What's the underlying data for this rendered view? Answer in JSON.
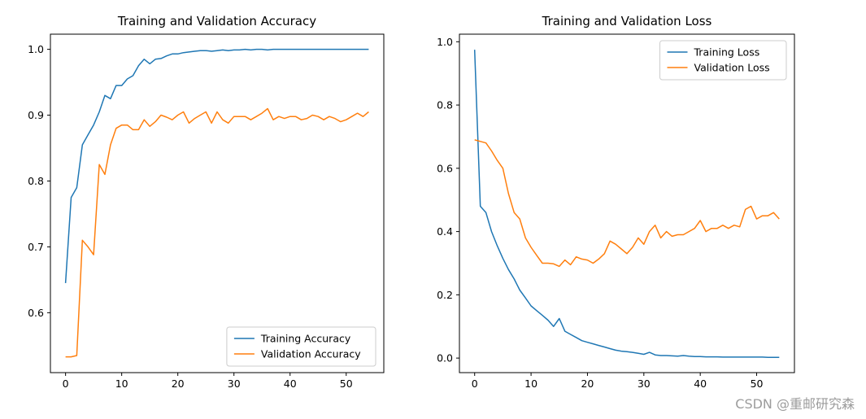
{
  "figure": {
    "background": "#ffffff"
  },
  "watermark": {
    "text": "CSDN @重邮研究森",
    "color": "#9c9c9c"
  },
  "chart_data": [
    {
      "type": "line",
      "title": "Training and Validation Accuracy",
      "xlabel": "",
      "ylabel": "",
      "grid": false,
      "legend_position": "lower-right",
      "xlim": [
        -2.7,
        56.7
      ],
      "ylim": [
        0.509,
        1.023
      ],
      "xticks": [
        "0",
        "10",
        "20",
        "30",
        "40",
        "50"
      ],
      "yticks": [
        "0.6",
        "0.7",
        "0.8",
        "0.9",
        "1.0"
      ],
      "x": [
        0,
        1,
        2,
        3,
        4,
        5,
        6,
        7,
        8,
        9,
        10,
        11,
        12,
        13,
        14,
        15,
        16,
        17,
        18,
        19,
        20,
        21,
        22,
        23,
        24,
        25,
        26,
        27,
        28,
        29,
        30,
        31,
        32,
        33,
        34,
        35,
        36,
        37,
        38,
        39,
        40,
        41,
        42,
        43,
        44,
        45,
        46,
        47,
        48,
        49,
        50,
        51,
        52,
        53,
        54
      ],
      "series": [
        {
          "name": "Training Accuracy",
          "color": "#1f77b4",
          "values": [
            0.645,
            0.775,
            0.79,
            0.855,
            0.87,
            0.885,
            0.905,
            0.93,
            0.925,
            0.945,
            0.945,
            0.955,
            0.96,
            0.975,
            0.985,
            0.978,
            0.985,
            0.986,
            0.99,
            0.993,
            0.993,
            0.995,
            0.996,
            0.997,
            0.998,
            0.998,
            0.997,
            0.998,
            0.999,
            0.998,
            0.999,
            0.999,
            1.0,
            0.999,
            1.0,
            1.0,
            0.999,
            1.0,
            1.0,
            1.0,
            1.0,
            1.0,
            1.0,
            1.0,
            1.0,
            1.0,
            1.0,
            1.0,
            1.0,
            1.0,
            1.0,
            1.0,
            1.0,
            1.0,
            1.0
          ]
        },
        {
          "name": "Validation Accuracy",
          "color": "#ff7f0e",
          "values": [
            0.533,
            0.533,
            0.535,
            0.71,
            0.7,
            0.688,
            0.825,
            0.81,
            0.855,
            0.88,
            0.885,
            0.885,
            0.878,
            0.878,
            0.893,
            0.883,
            0.89,
            0.9,
            0.897,
            0.893,
            0.9,
            0.905,
            0.888,
            0.895,
            0.9,
            0.905,
            0.888,
            0.905,
            0.893,
            0.888,
            0.898,
            0.898,
            0.898,
            0.893,
            0.898,
            0.903,
            0.91,
            0.893,
            0.898,
            0.895,
            0.898,
            0.898,
            0.893,
            0.895,
            0.9,
            0.898,
            0.893,
            0.898,
            0.895,
            0.89,
            0.893,
            0.898,
            0.903,
            0.898,
            0.905
          ]
        }
      ]
    },
    {
      "type": "line",
      "title": "Training and Validation Loss",
      "xlabel": "",
      "ylabel": "",
      "grid": false,
      "legend_position": "upper-right",
      "xlim": [
        -2.7,
        56.7
      ],
      "ylim": [
        -0.046,
        1.024
      ],
      "xticks": [
        "0",
        "10",
        "20",
        "30",
        "40",
        "50"
      ],
      "yticks": [
        "0.0",
        "0.2",
        "0.4",
        "0.6",
        "0.8",
        "1.0"
      ],
      "x": [
        0,
        1,
        2,
        3,
        4,
        5,
        6,
        7,
        8,
        9,
        10,
        11,
        12,
        13,
        14,
        15,
        16,
        17,
        18,
        19,
        20,
        21,
        22,
        23,
        24,
        25,
        26,
        27,
        28,
        29,
        30,
        31,
        32,
        33,
        34,
        35,
        36,
        37,
        38,
        39,
        40,
        41,
        42,
        43,
        44,
        45,
        46,
        47,
        48,
        49,
        50,
        51,
        52,
        53,
        54
      ],
      "series": [
        {
          "name": "Training Loss",
          "color": "#1f77b4",
          "values": [
            0.975,
            0.48,
            0.46,
            0.4,
            0.355,
            0.315,
            0.28,
            0.25,
            0.215,
            0.19,
            0.165,
            0.15,
            0.135,
            0.12,
            0.1,
            0.125,
            0.085,
            0.075,
            0.065,
            0.055,
            0.05,
            0.045,
            0.04,
            0.035,
            0.03,
            0.025,
            0.022,
            0.02,
            0.018,
            0.015,
            0.012,
            0.018,
            0.01,
            0.008,
            0.008,
            0.007,
            0.006,
            0.008,
            0.006,
            0.005,
            0.005,
            0.004,
            0.004,
            0.004,
            0.003,
            0.003,
            0.003,
            0.003,
            0.003,
            0.003,
            0.003,
            0.003,
            0.002,
            0.002,
            0.002
          ]
        },
        {
          "name": "Validation Loss",
          "color": "#ff7f0e",
          "values": [
            0.69,
            0.685,
            0.68,
            0.655,
            0.625,
            0.6,
            0.52,
            0.46,
            0.44,
            0.38,
            0.35,
            0.325,
            0.3,
            0.3,
            0.298,
            0.29,
            0.31,
            0.295,
            0.32,
            0.313,
            0.31,
            0.3,
            0.313,
            0.33,
            0.37,
            0.36,
            0.345,
            0.33,
            0.35,
            0.38,
            0.36,
            0.4,
            0.42,
            0.38,
            0.4,
            0.385,
            0.39,
            0.39,
            0.4,
            0.41,
            0.435,
            0.4,
            0.41,
            0.41,
            0.42,
            0.41,
            0.42,
            0.415,
            0.47,
            0.48,
            0.44,
            0.45,
            0.45,
            0.46,
            0.44
          ]
        }
      ]
    }
  ]
}
